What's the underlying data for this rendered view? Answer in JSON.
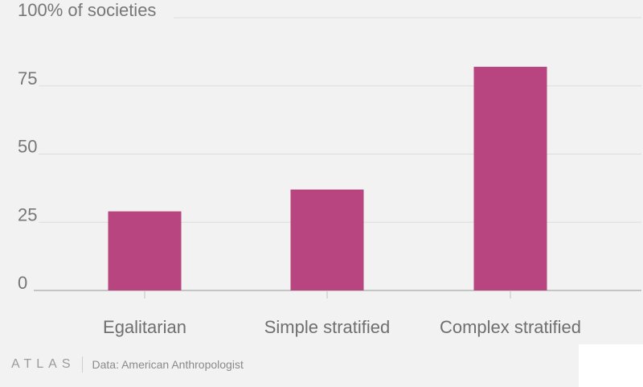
{
  "chart_data": {
    "type": "bar",
    "categories": [
      "Egalitarian",
      "Simple stratified",
      "Complex stratified"
    ],
    "values": [
      29,
      37,
      82
    ],
    "ylim": [
      0,
      100
    ],
    "yticks": [
      0,
      25,
      50,
      75,
      100
    ],
    "ytick_labels": [
      "0",
      "25",
      "50",
      "75",
      "100% of societies"
    ],
    "grid": true,
    "bar_color": "#b8457f"
  },
  "footer": {
    "brand": "ATLAS",
    "source": "Data: American Anthropologist"
  }
}
